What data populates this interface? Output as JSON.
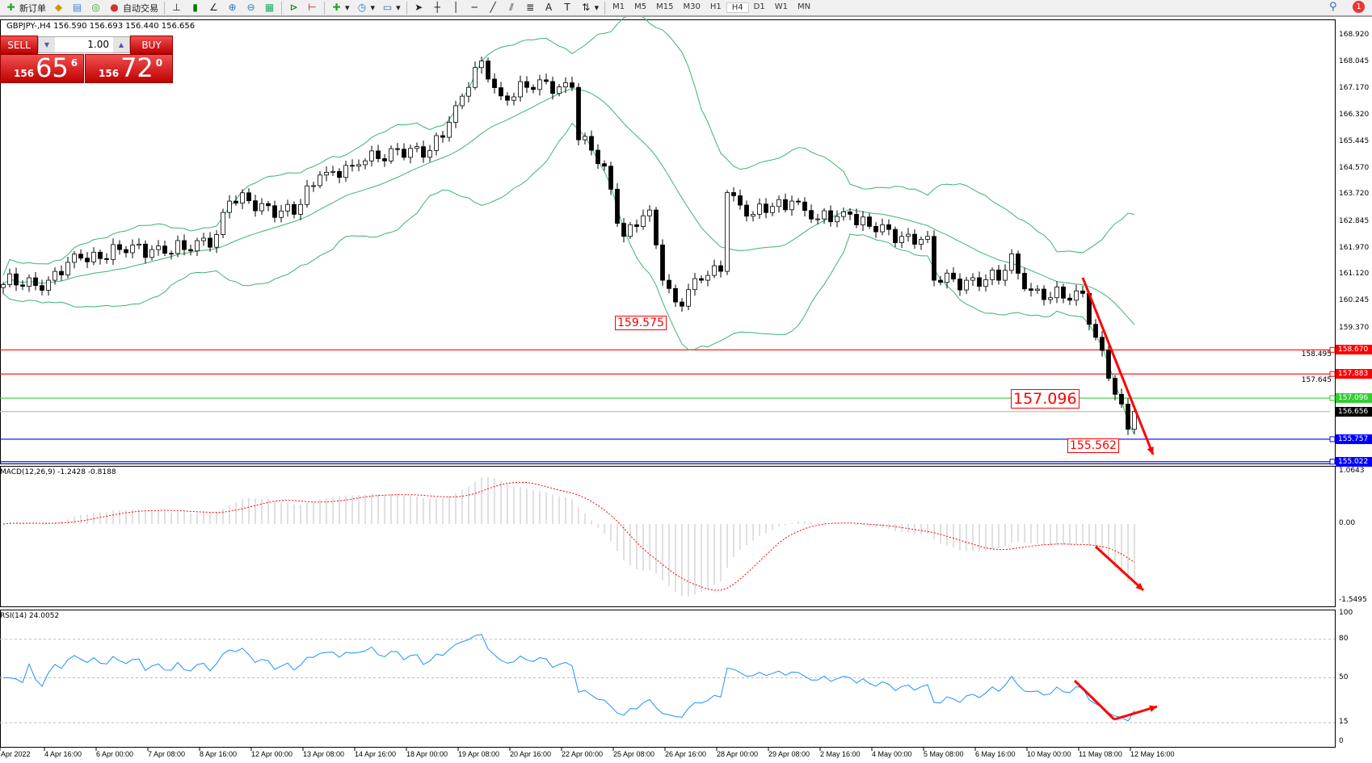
{
  "toolbar": {
    "new_order": "新订单",
    "auto_trading": "自动交易",
    "timeframes": [
      "M1",
      "M5",
      "M15",
      "M30",
      "H1",
      "H4",
      "D1",
      "W1",
      "MN"
    ],
    "active_timeframe": "H4",
    "notifications": "1"
  },
  "symbol_info": "GBPJPY-,H4  156.590 156.693 156.440 156.656",
  "trade_panel": {
    "sell": "SELL",
    "buy": "BUY",
    "lot": "1.00",
    "sell_prefix": "156",
    "sell_big": "65",
    "sell_tail": "6",
    "buy_prefix": "156",
    "buy_big": "72",
    "buy_tail": "0"
  },
  "price_axis": [
    "168.920",
    "168.045",
    "167.170",
    "166.320",
    "165.445",
    "164.570",
    "163.720",
    "162.845",
    "161.970",
    "161.120",
    "160.245",
    "159.370",
    "158.495",
    "157.645"
  ],
  "levels": [
    {
      "price": 158.67,
      "label": "158.670",
      "color": "#ff0000"
    },
    {
      "price": 157.883,
      "label": "157.883",
      "color": "#ff0000"
    },
    {
      "price": 157.096,
      "label": "157.096",
      "color": "#33cc33"
    },
    {
      "price": 156.656,
      "label": "156.656",
      "color": "#000000",
      "line": "#c0c0c0"
    },
    {
      "price": 155.757,
      "label": "155.757",
      "color": "#0000ff"
    },
    {
      "price": 155.022,
      "label": "155.022",
      "color": "#0000ff"
    }
  ],
  "annotations": {
    "low_1": "159.575",
    "level_mid": "157.096",
    "low_2": "155.562"
  },
  "macd": {
    "label": "MACD(12,26,9) -1.2428 -0.8188",
    "axis": [
      "1.0643",
      "0.00",
      "-1.5495"
    ]
  },
  "rsi": {
    "label": "RSI(14) 24.0052",
    "axis": [
      "100",
      "80",
      "50",
      "15",
      "0"
    ]
  },
  "time_axis": [
    "Apr 2022",
    "4 Apr 16:00",
    "6 Apr 00:00",
    "7 Apr 08:00",
    "8 Apr 16:00",
    "12 Apr 00:00",
    "13 Apr 08:00",
    "14 Apr 16:00",
    "18 Apr 00:00",
    "19 Apr 08:00",
    "20 Apr 16:00",
    "22 Apr 00:00",
    "25 Apr 08:00",
    "26 Apr 16:00",
    "28 Apr 00:00",
    "29 Apr 08:00",
    "2 May 16:00",
    "4 May 00:00",
    "5 May 08:00",
    "6 May 16:00",
    "10 May 00:00",
    "11 May 08:00",
    "12 May 16:00"
  ],
  "chart_data": {
    "type": "candlestick",
    "symbol": "GBPJPY",
    "timeframe": "H4",
    "indicators": [
      "Bollinger Bands(20,2)",
      "MACD(12,26,9)",
      "RSI(14)"
    ],
    "close_path": [
      [
        0,
        160.8
      ],
      [
        7,
        160.94
      ],
      [
        12,
        161.66
      ],
      [
        18,
        161.94
      ],
      [
        23,
        161.94
      ],
      [
        28,
        161.94
      ],
      [
        33,
        162.43
      ],
      [
        35,
        163.52
      ],
      [
        41,
        163.37
      ],
      [
        45,
        163.09
      ],
      [
        49,
        164.37
      ],
      [
        54,
        164.66
      ],
      [
        60,
        165.23
      ],
      [
        65,
        164.95
      ],
      [
        69,
        166.09
      ],
      [
        72,
        167.23
      ],
      [
        74,
        168.09
      ],
      [
        77,
        166.95
      ],
      [
        81,
        167.23
      ],
      [
        87,
        167.38
      ],
      [
        88,
        167.23
      ],
      [
        89,
        165.52
      ],
      [
        93,
        164.66
      ],
      [
        96,
        162.37
      ],
      [
        100,
        163.23
      ],
      [
        102,
        160.94
      ],
      [
        104,
        160.23
      ],
      [
        108,
        160.94
      ],
      [
        111,
        161.23
      ],
      [
        112,
        163.8
      ],
      [
        116,
        163.09
      ],
      [
        122,
        163.52
      ],
      [
        126,
        162.94
      ],
      [
        131,
        163.09
      ],
      [
        135,
        162.52
      ],
      [
        139,
        162.37
      ],
      [
        143,
        162.37
      ],
      [
        144,
        160.94
      ],
      [
        149,
        160.94
      ],
      [
        154,
        160.94
      ],
      [
        156,
        161.8
      ],
      [
        158,
        160.66
      ],
      [
        162,
        160.37
      ],
      [
        167,
        160.51
      ],
      [
        169,
        159.08
      ],
      [
        172,
        157.22
      ],
      [
        174,
        156.08
      ],
      [
        175,
        156.656
      ]
    ],
    "colors": {
      "bands": "#3cb371",
      "macd_hist": "#c0c0c0",
      "macd_signal": "#ff0000",
      "rsi": "#1e90ff",
      "arrows": "#ff0000"
    }
  }
}
